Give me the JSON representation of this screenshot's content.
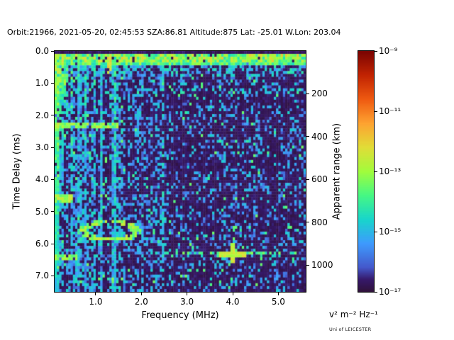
{
  "header": {
    "title": "Orbit:21966, 2021-05-20, 02:45:53 SZA:86.81 Altitude:875 Lat: -25.01 W.Lon: 203.04"
  },
  "footer": {
    "credit": "Uni of LEICESTER"
  },
  "chart_data": {
    "type": "heatmap",
    "title": "Orbit:21966, 2021-05-20, 02:45:53 SZA:86.81 Altitude:875 Lat: -25.01 W.Lon: 203.04",
    "xlabel": "Frequency (MHz)",
    "ylabel_left": "Time Delay (ms)",
    "ylabel_right": "Apparent range (km)",
    "colorbar_label": "v² m⁻² Hz⁻¹",
    "x_range_mhz": [
      0.1,
      5.6
    ],
    "y_range_ms": [
      0.0,
      7.5
    ],
    "x_ticks": [
      1.0,
      2.0,
      3.0,
      4.0,
      5.0
    ],
    "y_ticks": [
      0.0,
      1.0,
      2.0,
      3.0,
      4.0,
      5.0,
      6.0,
      7.0
    ],
    "right_ticks_km": [
      200,
      400,
      600,
      800,
      1000
    ],
    "range_km_per_ms": 150,
    "color_scale": {
      "scale": "log",
      "min": 1e-17,
      "max": 1e-09,
      "tick_exponents": [
        -9,
        -11,
        -13,
        -15,
        -17
      ],
      "tick_labels": [
        "10⁻⁹",
        "10⁻¹¹",
        "10⁻¹³",
        "10⁻¹⁵",
        "10⁻¹⁷"
      ],
      "colormap": "turbo"
    },
    "colormap_stops": [
      [
        0.0,
        "#30123b"
      ],
      [
        0.05,
        "#36196b"
      ],
      [
        0.1,
        "#4458cb"
      ],
      [
        0.2,
        "#3e9bfe"
      ],
      [
        0.3,
        "#18d6cb"
      ],
      [
        0.4,
        "#46f884"
      ],
      [
        0.5,
        "#a2fc3c"
      ],
      [
        0.6,
        "#e1dd37"
      ],
      [
        0.7,
        "#fea331"
      ],
      [
        0.8,
        "#ef5a11"
      ],
      [
        0.9,
        "#c22402"
      ],
      [
        1.0,
        "#7a0402"
      ]
    ],
    "seed": 21966,
    "grid": {
      "cols": 110,
      "rows": 84
    },
    "features": [
      {
        "type": "speckle",
        "f": [
          0.1,
          1.6
        ],
        "t": [
          0.35,
          7.5
        ],
        "density": 0.5,
        "imin": 0.12,
        "imax": 0.33,
        "streak": 1
      },
      {
        "type": "speckle",
        "f": [
          1.6,
          2.52
        ],
        "t": [
          0.35,
          7.5
        ],
        "density": 0.38,
        "imin": 0.12,
        "imax": 0.3,
        "streak": 0.6
      },
      {
        "type": "speckle",
        "f": [
          2.52,
          5.6
        ],
        "t": [
          0.35,
          7.5
        ],
        "density": 0.22,
        "imin": 0.1,
        "imax": 0.3,
        "streak": 0.4
      },
      {
        "type": "speckle",
        "f": [
          0.1,
          5.6
        ],
        "t": [
          0.35,
          7.5
        ],
        "density": 0.02,
        "imin": 0.33,
        "imax": 0.45
      },
      {
        "type": "band",
        "f": [
          0.1,
          5.6
        ],
        "t": [
          0.08,
          0.45
        ],
        "density": 0.93,
        "imin": 0.3,
        "imax": 0.52
      },
      {
        "type": "band",
        "f": [
          0.1,
          5.6
        ],
        "t": [
          0.1,
          0.4
        ],
        "density": 0.3,
        "imin": 0.5,
        "imax": 0.64
      },
      {
        "type": "band",
        "f": [
          0.1,
          5.6
        ],
        "t": [
          0.45,
          0.8
        ],
        "density": 0.3,
        "imin": 0.15,
        "imax": 0.35
      },
      {
        "type": "band",
        "f": [
          0.1,
          0.35
        ],
        "t": [
          0.08,
          1.3
        ],
        "density": 0.75,
        "imin": 0.3,
        "imax": 0.55
      },
      {
        "type": "vline",
        "f": 0.14,
        "w": 0.07,
        "t": [
          0.05,
          7.5
        ],
        "density": 0.85,
        "imin": 0.4,
        "imax": 0.6,
        "fade": 0.45
      },
      {
        "type": "vline",
        "f": 0.25,
        "w": 0.06,
        "t": [
          0.05,
          4.5
        ],
        "density": 0.7,
        "imin": 0.3,
        "imax": 0.5,
        "fade": 0.5
      },
      {
        "type": "vline",
        "f": 0.35,
        "w": 0.06,
        "t": [
          0.05,
          2.6
        ],
        "density": 0.7,
        "imin": 0.3,
        "imax": 0.5,
        "fade": 0.4
      },
      {
        "type": "vline",
        "f": 0.47,
        "w": 0.06,
        "t": [
          0.05,
          7.5
        ],
        "density": 0.6,
        "imin": 0.28,
        "imax": 0.48,
        "fade": 0.5
      },
      {
        "type": "vline",
        "f": 0.62,
        "w": 0.06,
        "t": [
          0.05,
          2.2
        ],
        "density": 0.6,
        "imin": 0.28,
        "imax": 0.48,
        "fade": 0.4
      },
      {
        "type": "vline",
        "f": 0.79,
        "w": 0.06,
        "t": [
          0.05,
          7.5
        ],
        "density": 0.55,
        "imin": 0.25,
        "imax": 0.45,
        "fade": 0.5
      },
      {
        "type": "vline",
        "f": 0.97,
        "w": 0.06,
        "t": [
          0.05,
          2.0
        ],
        "density": 0.55,
        "imin": 0.28,
        "imax": 0.48,
        "fade": 0.3
      },
      {
        "type": "vline",
        "f": 1.13,
        "w": 0.06,
        "t": [
          0.05,
          6.2
        ],
        "density": 0.5,
        "imin": 0.25,
        "imax": 0.42,
        "fade": 0.5
      },
      {
        "type": "vline",
        "f": 1.3,
        "w": 0.08,
        "t": [
          0.05,
          0.75
        ],
        "density": 0.9,
        "imin": 0.5,
        "imax": 0.66
      },
      {
        "type": "vline",
        "f": 1.44,
        "w": 0.06,
        "t": [
          0.05,
          7.5
        ],
        "density": 0.65,
        "imin": 0.28,
        "imax": 0.45,
        "fade": 0.35
      },
      {
        "type": "vline",
        "f": 2.48,
        "w": 0.05,
        "t": [
          0.45,
          7.5
        ],
        "density": 0.45,
        "imin": 0.2,
        "imax": 0.35
      },
      {
        "type": "hseg",
        "t": 2.3,
        "h": 0.22,
        "f": [
          0.1,
          1.52
        ],
        "density": 0.85,
        "imin": 0.38,
        "imax": 0.58
      },
      {
        "type": "hseg",
        "t": 4.6,
        "h": 0.2,
        "f": [
          0.1,
          0.52
        ],
        "density": 0.85,
        "imin": 0.4,
        "imax": 0.58
      },
      {
        "type": "hseg",
        "t": 6.45,
        "h": 0.2,
        "f": [
          0.1,
          0.62
        ],
        "density": 0.8,
        "imin": 0.38,
        "imax": 0.56
      },
      {
        "type": "hseg",
        "t": 7.1,
        "h": 0.15,
        "f": [
          1.05,
          1.75
        ],
        "density": 0.5,
        "imin": 0.35,
        "imax": 0.5
      },
      {
        "type": "hseg",
        "t": 1.25,
        "h": 0.12,
        "f": [
          2.52,
          5.6
        ],
        "density": 0.3,
        "imin": 0.22,
        "imax": 0.38
      },
      {
        "type": "hseg",
        "t": 6.3,
        "h": 0.14,
        "f": [
          2.3,
          5.6
        ],
        "density": 0.5,
        "imin": 0.3,
        "imax": 0.48
      },
      {
        "type": "ellipse",
        "fc": 1.3,
        "tc": 5.6,
        "rf": 0.62,
        "rt": 0.3,
        "ring": [
          0.55,
          1.25
        ],
        "density": 0.75,
        "imin": 0.4,
        "imax": 0.58
      },
      {
        "type": "hseg",
        "t": 5.85,
        "h": 0.16,
        "f": [
          0.95,
          1.8
        ],
        "density": 0.7,
        "imin": 0.45,
        "imax": 0.62
      },
      {
        "type": "cross",
        "f": 4.0,
        "t": 6.3,
        "rf": 0.3,
        "tw": 0.09,
        "rt": 0.28,
        "fw": 0.05,
        "imin": 0.5,
        "imax": 0.62
      }
    ]
  }
}
